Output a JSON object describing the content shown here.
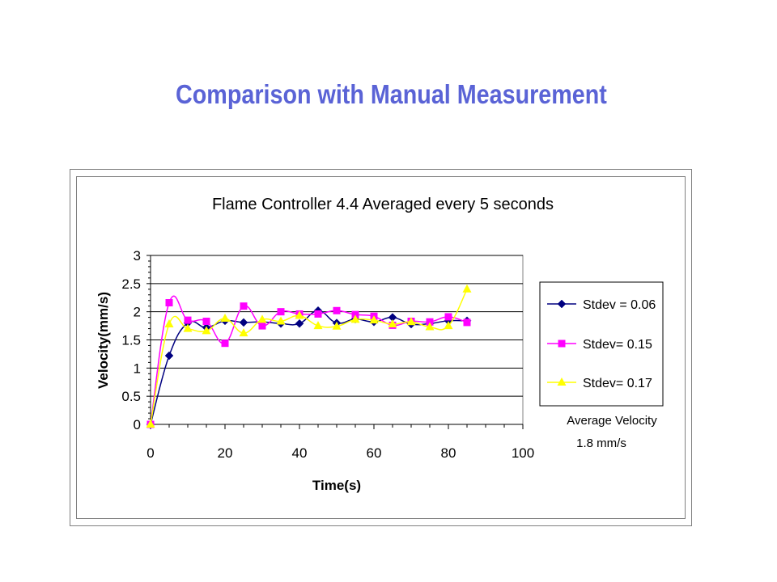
{
  "slide": {
    "title": "Comparison with Manual Measurement"
  },
  "chart_data": {
    "type": "line",
    "title": "Flame Controller 4.4 Averaged every 5 seconds",
    "xlabel": "Time(s)",
    "ylabel": "Velocity(mm/s)",
    "xlim": [
      0,
      100
    ],
    "ylim": [
      0,
      3
    ],
    "xticks": [
      "0",
      "20",
      "40",
      "60",
      "80",
      "100"
    ],
    "yticks": [
      "0",
      "0.5",
      "1",
      "1.5",
      "2",
      "2.5",
      "3"
    ],
    "grid": "horizontal",
    "legend_position": "right",
    "annotation_lines": [
      "Average Velocity",
      "1.8 mm/s"
    ],
    "series": [
      {
        "name": "Stdev = 0.06",
        "color": "#000080",
        "marker": "diamond",
        "x": [
          0,
          5,
          10,
          15,
          20,
          25,
          30,
          35,
          40,
          45,
          50,
          55,
          60,
          65,
          70,
          75,
          80,
          85
        ],
        "y": [
          0.0,
          1.22,
          1.8,
          1.72,
          1.84,
          1.81,
          1.82,
          1.79,
          1.79,
          2.02,
          1.8,
          1.87,
          1.82,
          1.9,
          1.78,
          1.79,
          1.84,
          1.84
        ]
      },
      {
        "name": "Stdev= 0.15",
        "color": "#ff00ff",
        "marker": "square",
        "x": [
          0,
          5,
          10,
          15,
          20,
          25,
          30,
          35,
          40,
          45,
          50,
          55,
          60,
          65,
          70,
          75,
          80,
          85
        ],
        "y": [
          0.0,
          2.16,
          1.85,
          1.83,
          1.44,
          2.1,
          1.75,
          2.0,
          1.96,
          1.96,
          2.02,
          1.95,
          1.92,
          1.76,
          1.83,
          1.82,
          1.91,
          1.81
        ]
      },
      {
        "name": "Stdev= 0.17",
        "color": "#ffff00",
        "marker": "triangle",
        "x": [
          0,
          5,
          10,
          15,
          20,
          25,
          30,
          35,
          40,
          45,
          50,
          55,
          60,
          65,
          70,
          75,
          80,
          85
        ],
        "y": [
          0.0,
          1.78,
          1.7,
          1.66,
          1.88,
          1.62,
          1.86,
          1.83,
          1.93,
          1.75,
          1.74,
          1.86,
          1.85,
          1.78,
          1.82,
          1.73,
          1.75,
          2.4
        ]
      }
    ]
  }
}
